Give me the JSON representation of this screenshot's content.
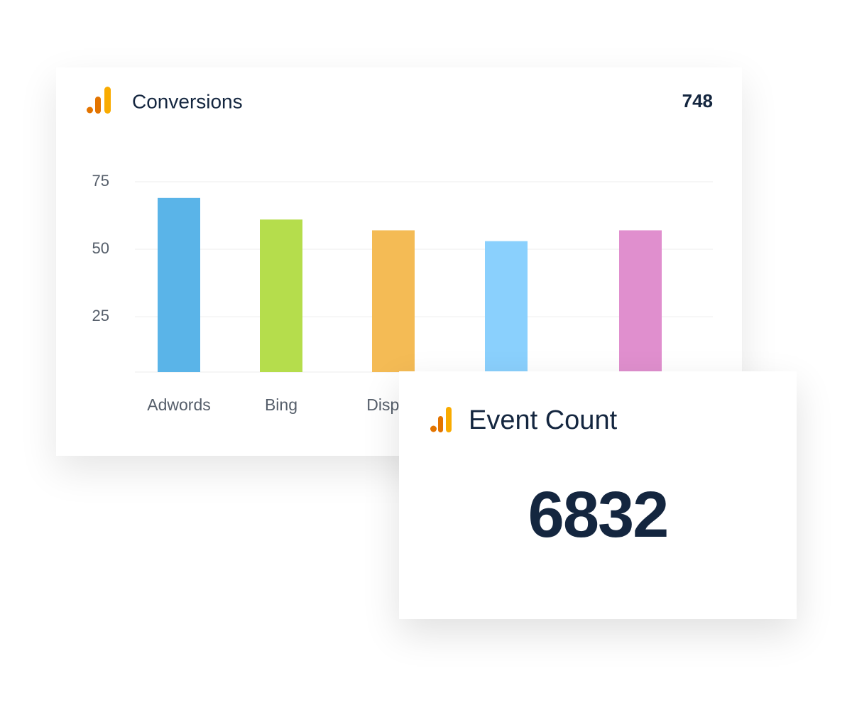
{
  "chart_data": {
    "type": "bar",
    "title": "Conversions",
    "total": 748,
    "categories": [
      "Adwords",
      "Bing",
      "Display",
      null,
      null
    ],
    "values": [
      69,
      61,
      57,
      53,
      57
    ],
    "colors": [
      "#5ab4e8",
      "#b5dd4c",
      "#f4bb55",
      "#8ad0fd",
      "#e08fce"
    ],
    "ylim": [
      4.5,
      75
    ],
    "yticks": [
      25,
      50,
      75
    ],
    "grid": true
  },
  "event_card": {
    "title": "Event Count",
    "value": 6832
  }
}
